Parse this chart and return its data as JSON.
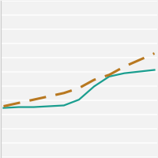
{
  "solid_line": {
    "x": [
      0,
      1,
      2,
      3,
      4,
      5,
      6,
      7,
      8,
      9,
      10
    ],
    "y": [
      7.0,
      7.05,
      7.05,
      7.1,
      7.15,
      7.5,
      8.3,
      8.9,
      9.1,
      9.2,
      9.3
    ],
    "color": "#1a9e8f",
    "linewidth": 1.6,
    "linestyle": "-"
  },
  "dashed_line": {
    "x": [
      0,
      1,
      2,
      3,
      4,
      5,
      6,
      7,
      8,
      9,
      10
    ],
    "y": [
      7.1,
      7.3,
      7.5,
      7.7,
      7.9,
      8.2,
      8.7,
      9.0,
      9.5,
      9.9,
      10.3
    ],
    "color": "#b87820",
    "linewidth": 2.2,
    "linestyle": "--",
    "dashes": [
      7,
      4
    ]
  },
  "ylim": [
    4.0,
    13.5
  ],
  "xlim": [
    -0.2,
    10.2
  ],
  "background_color": "#f2f2f2",
  "grid_color": "#ffffff",
  "grid_linewidth": 1.1,
  "n_gridlines": 12
}
